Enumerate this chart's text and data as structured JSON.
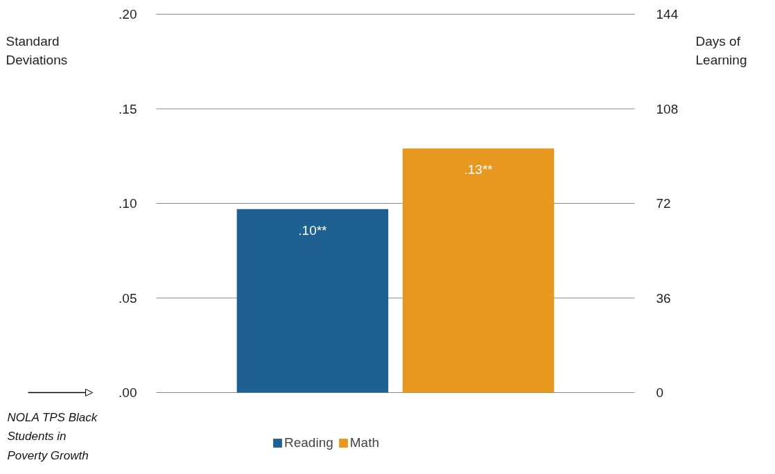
{
  "chart_data": {
    "type": "bar",
    "categories": [
      null
    ],
    "series": [
      {
        "name": "Reading",
        "color": "#1e6091",
        "values": [
          0.097
        ],
        "value_labels": [
          ".10**"
        ]
      },
      {
        "name": "Math",
        "color": "#e8981e",
        "values": [
          0.129
        ],
        "value_labels": [
          ".13**"
        ]
      }
    ],
    "ylabel": "Standard Deviations",
    "y2label": "Days of Learning",
    "ylim": [
      0,
      0.2
    ],
    "yticks": [
      {
        "value": 0,
        "label": ".00"
      },
      {
        "value": 0.05,
        "label": ".05"
      },
      {
        "value": 0.1,
        "label": ".10"
      },
      {
        "value": 0.15,
        "label": ".15"
      },
      {
        "value": 0.2,
        "label": ".20"
      }
    ],
    "y2lim": [
      0,
      144
    ],
    "y2ticks": [
      0,
      36,
      72,
      108,
      144
    ],
    "grid": "y",
    "legend": "bottom",
    "annotations": [
      "NOLA TPS Black Students in Poverty Growth"
    ]
  }
}
